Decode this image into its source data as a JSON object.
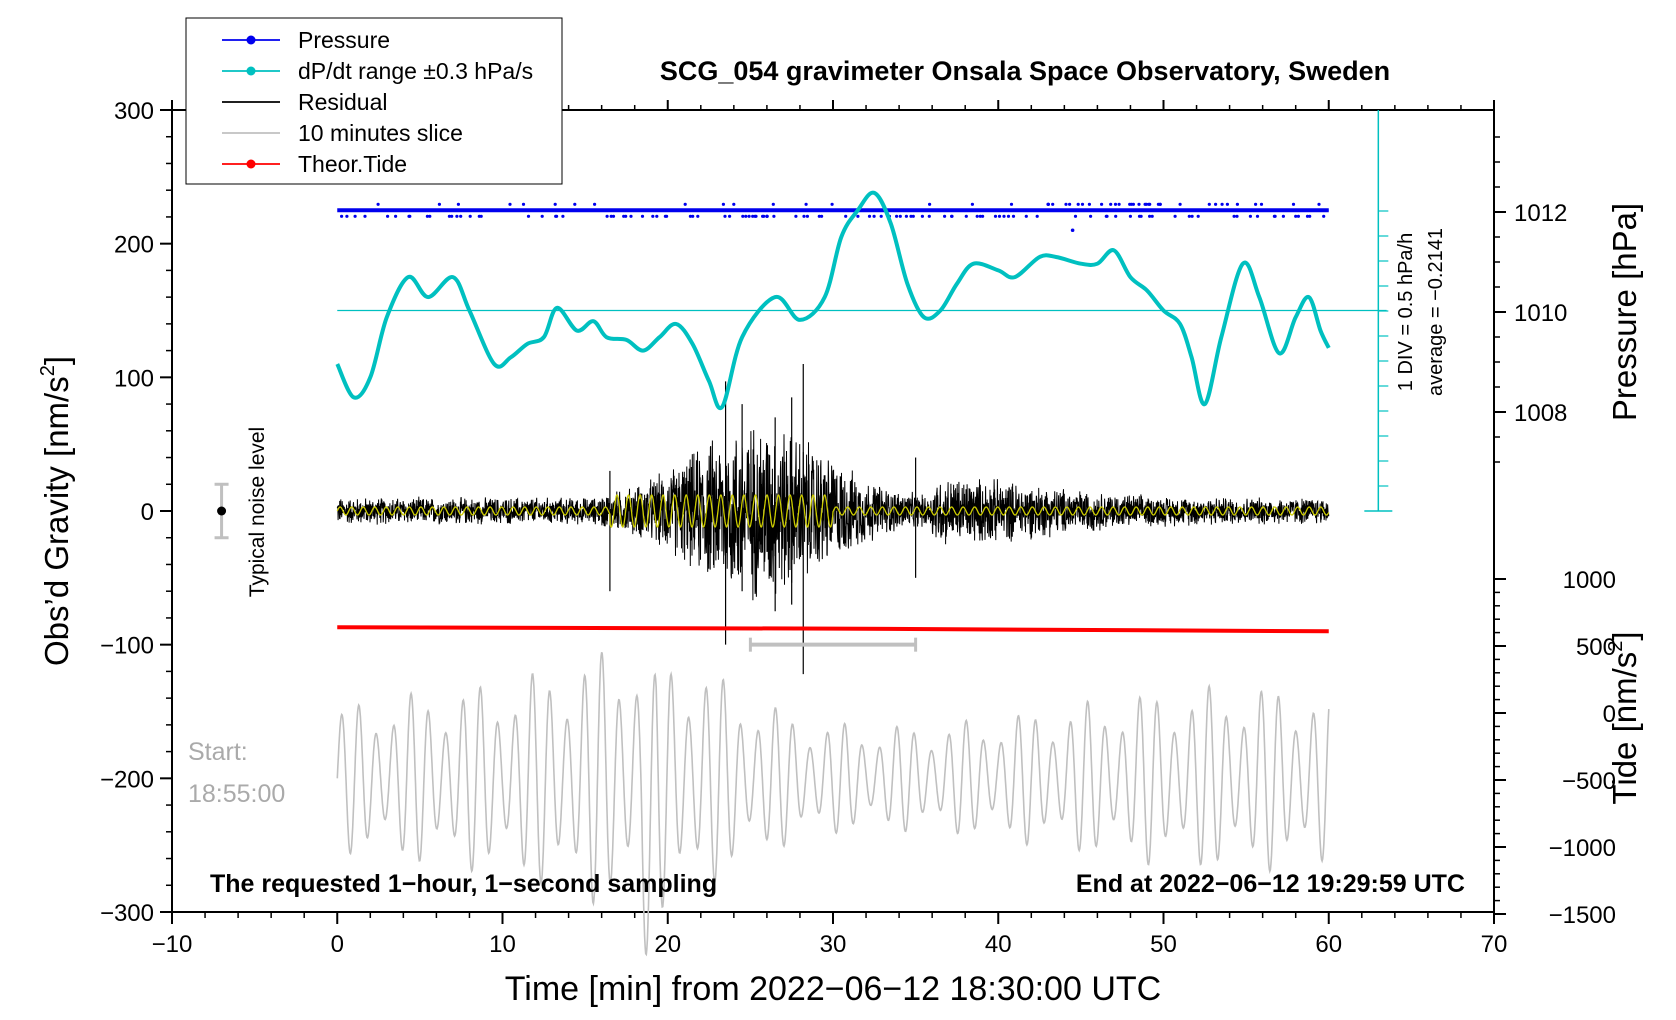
{
  "chart_data": {
    "type": "line",
    "title": "SCG_054 gravimeter Onsala Space Observatory, Sweden",
    "xlabel": "Time [min] from 2022−06−12 18:30:00 UTC",
    "ylabel_left": "Obs’d Gravity [nm/s",
    "ylabel_left_sup": "2",
    "ylabel_left_close": "]",
    "ylabel_right_pressure": "Pressure [hPa]",
    "ylabel_right_tide": "Tide [nm/s",
    "ylabel_right_tide_sup": "2",
    "ylabel_right_tide_close": "]",
    "xlim": [
      -10,
      70
    ],
    "ylim_left": [
      -300,
      300
    ],
    "x_ticks": [
      "−10",
      "0",
      "10",
      "20",
      "30",
      "40",
      "50",
      "60",
      "70"
    ],
    "x_tick_values": [
      -10,
      0,
      10,
      20,
      30,
      40,
      50,
      60,
      70
    ],
    "y_left_ticks": [
      "300",
      "200",
      "100",
      "0",
      "−100",
      "−200",
      "−300"
    ],
    "y_left_tick_values": [
      300,
      200,
      100,
      0,
      -100,
      -200,
      -300
    ],
    "pressure_ticks": [
      "1012",
      "1010",
      "1008"
    ],
    "pressure_tick_values": [
      1012,
      1010,
      1008
    ],
    "tide_ticks": [
      "1000",
      "500",
      "0",
      "−500",
      "−1000",
      "−1500"
    ],
    "tide_tick_values": [
      1000,
      500,
      0,
      -500,
      -1000,
      -1500
    ],
    "legend": [
      {
        "label": "Pressure",
        "color": "#0000ee",
        "marker": true
      },
      {
        "label": "dP/dt range ±0.3 hPa/s",
        "color": "#00c0c0",
        "marker": true
      },
      {
        "label": "Residual",
        "color": "#000000",
        "marker": false
      },
      {
        "label": "10 minutes slice",
        "color": "#c0c0c0",
        "marker": false
      },
      {
        "label": "Theor.Tide",
        "color": "#ff0000",
        "marker": true
      }
    ],
    "annotations": {
      "noise_label": "Typical noise level",
      "start_label": "Start:",
      "start_time": "18:55:00",
      "bottom_left": "The requested 1−hour, 1−second sampling",
      "bottom_right": "End at 2022−06−12 19:29:59 UTC",
      "div_label": "1 DIV = 0.5 hPa/h",
      "average_label": "average = −0.2141"
    },
    "series": [
      {
        "name": "Pressure",
        "color": "#0000ee",
        "x_range": [
          0,
          60
        ],
        "y_plot_value": 225
      },
      {
        "name": "dP/dt",
        "color": "#00c0c0",
        "x": [
          0,
          1,
          2,
          3,
          4.3,
          5.5,
          7,
          8,
          9.5,
          10.5,
          11.5,
          12.5,
          13.3,
          14.5,
          15.5,
          16.3,
          17.5,
          18.5,
          19.5,
          20.5,
          21.5,
          22.5,
          23.3,
          24.5,
          26.5,
          28,
          29.5,
          30.5,
          31.5,
          32.5,
          33.5,
          34.5,
          35.5,
          36.5,
          37.5,
          38.5,
          40,
          41,
          42.5,
          43.5,
          45,
          46,
          47,
          48,
          49,
          50,
          51,
          51.7,
          52.5,
          53.5,
          54.8,
          55.8,
          57,
          58,
          58.8,
          59.5,
          60
        ],
        "y": [
          110,
          85,
          100,
          145,
          175,
          160,
          175,
          150,
          110,
          115,
          125,
          130,
          152,
          135,
          142,
          130,
          128,
          120,
          130,
          140,
          125,
          97,
          78,
          130,
          160,
          143,
          160,
          205,
          225,
          238,
          215,
          170,
          145,
          150,
          170,
          185,
          180,
          175,
          190,
          190,
          185,
          185,
          195,
          175,
          165,
          150,
          140,
          115,
          80,
          130,
          185,
          160,
          118,
          145,
          160,
          135,
          122
        ]
      },
      {
        "name": "Theor.Tide",
        "color": "#ff0000",
        "x": [
          0,
          30,
          60
        ],
        "y": [
          -87,
          -88,
          -90
        ]
      },
      {
        "name": "10 minutes slice",
        "color": "#c0c0c0",
        "x_range": [
          25,
          35
        ],
        "y_plot_value": -100
      }
    ],
    "average_line_value": 150,
    "noise_bar": {
      "x": -7,
      "y": 0,
      "half_range": 20
    }
  }
}
